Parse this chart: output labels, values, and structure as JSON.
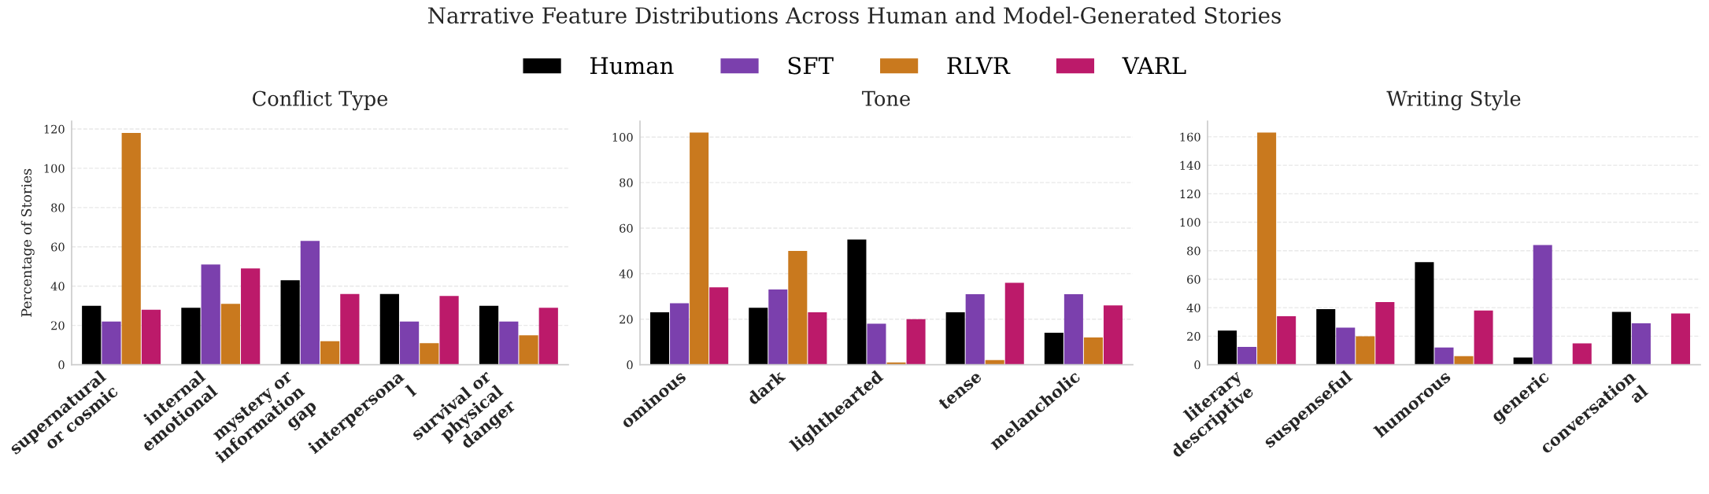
{
  "chart_data": [
    {
      "type": "bar",
      "title": "Conflict Type",
      "ylabel": "Percentage of Stories",
      "annotations": [
        "Narrative Feature Distributions Across Human and Model-Generated Stories"
      ],
      "legend": "top",
      "grid": "y",
      "categories": [
        "supernatural\nor cosmic",
        "internal\nemotional",
        "mystery or\ninformation\ngap",
        "interpersona\nl",
        "survival or\nphysical\ndanger"
      ],
      "ylim": [
        0,
        124
      ],
      "yticks": [
        0,
        20,
        40,
        60,
        80,
        100,
        120
      ],
      "series": [
        {
          "name": "Human",
          "color": "#000000",
          "values": [
            30,
            29,
            43,
            36,
            30
          ]
        },
        {
          "name": "SFT",
          "color": "#7b40ad",
          "values": [
            22,
            51,
            63,
            22,
            22
          ]
        },
        {
          "name": "RLVR",
          "color": "#c9791e",
          "values": [
            118,
            31,
            12,
            11,
            15
          ]
        },
        {
          "name": "VARL",
          "color": "#bc1a6a",
          "values": [
            28,
            49,
            36,
            35,
            29
          ]
        }
      ]
    },
    {
      "type": "bar",
      "title": "Tone",
      "grid": "y",
      "categories": [
        "ominous",
        "dark",
        "lighthearted",
        "tense",
        "melancholic"
      ],
      "ylim": [
        0,
        107
      ],
      "yticks": [
        0,
        20,
        40,
        60,
        80,
        100
      ],
      "series": [
        {
          "name": "Human",
          "color": "#000000",
          "values": [
            23,
            25,
            55,
            23,
            14
          ]
        },
        {
          "name": "SFT",
          "color": "#7b40ad",
          "values": [
            27,
            33,
            18,
            31,
            31
          ]
        },
        {
          "name": "RLVR",
          "color": "#c9791e",
          "values": [
            102,
            50,
            1,
            2,
            12
          ]
        },
        {
          "name": "VARL",
          "color": "#bc1a6a",
          "values": [
            34,
            23,
            20,
            36,
            26
          ]
        }
      ]
    },
    {
      "type": "bar",
      "title": "Writing Style",
      "grid": "y",
      "categories": [
        "literary\ndescriptive",
        "suspenseful",
        "humorous",
        "generic",
        "conversation\nal"
      ],
      "ylim": [
        0,
        171
      ],
      "yticks": [
        0,
        20,
        40,
        60,
        80,
        100,
        120,
        140,
        160
      ],
      "series": [
        {
          "name": "Human",
          "color": "#000000",
          "values": [
            24,
            39,
            72,
            5,
            37
          ]
        },
        {
          "name": "SFT",
          "color": "#7b40ad",
          "values": [
            12.5,
            26,
            12,
            84,
            29
          ]
        },
        {
          "name": "RLVR",
          "color": "#c9791e",
          "values": [
            163,
            20,
            6,
            0,
            0
          ]
        },
        {
          "name": "VARL",
          "color": "#bc1a6a",
          "values": [
            34,
            44,
            38,
            15,
            36
          ]
        }
      ]
    }
  ]
}
